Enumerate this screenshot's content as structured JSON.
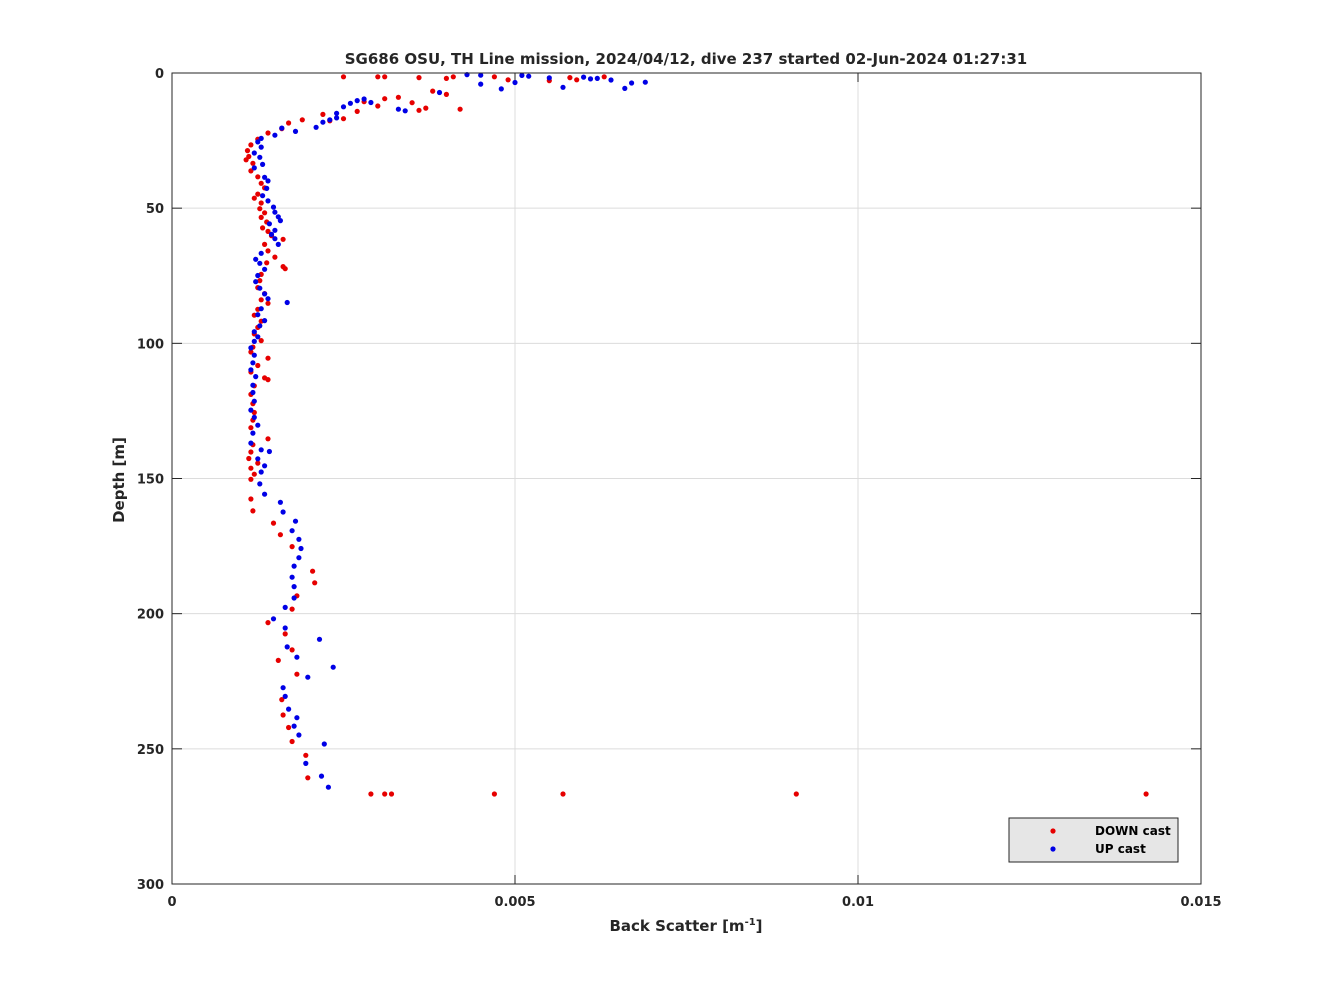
{
  "chart_data": {
    "type": "scatter",
    "title": "SG686 OSU, TH Line mission, 2024/04/12, dive 237 started 02-Jun-2024 01:27:31",
    "xlabel_main": "Back Scatter [m",
    "xlabel_sup": "-1",
    "xlabel_tail": "]",
    "ylabel": "Depth [m]",
    "xlim": [
      0,
      0.015
    ],
    "ylim": [
      0,
      300
    ],
    "y_reversed": true,
    "grid": true,
    "legend_placement": "bottom-right",
    "xticks": [
      {
        "value": 0,
        "label": "0"
      },
      {
        "value": 0.005,
        "label": "0.005"
      },
      {
        "value": 0.01,
        "label": "0.01"
      },
      {
        "value": 0.015,
        "label": "0.015"
      }
    ],
    "yticks": [
      {
        "value": 0,
        "label": "0"
      },
      {
        "value": 50,
        "label": "50"
      },
      {
        "value": 100,
        "label": "100"
      },
      {
        "value": 150,
        "label": "150"
      },
      {
        "value": 200,
        "label": "200"
      },
      {
        "value": 250,
        "label": "250"
      },
      {
        "value": 300,
        "label": "300"
      }
    ],
    "series": [
      {
        "name": "DOWN cast",
        "color": "#e60000",
        "points": [
          [
            0.0025,
            1.4
          ],
          [
            0.003,
            1.4
          ],
          [
            0.0031,
            1.4
          ],
          [
            0.0036,
            1.7
          ],
          [
            0.004,
            2.0
          ],
          [
            0.0041,
            1.4
          ],
          [
            0.0047,
            1.4
          ],
          [
            0.0049,
            2.5
          ],
          [
            0.0055,
            2.8
          ],
          [
            0.0058,
            1.7
          ],
          [
            0.0059,
            2.5
          ],
          [
            0.0063,
            1.4
          ],
          [
            0.0038,
            6.7
          ],
          [
            0.004,
            7.9
          ],
          [
            0.0037,
            13.0
          ],
          [
            0.0036,
            13.8
          ],
          [
            0.0042,
            13.4
          ],
          [
            0.0035,
            11.0
          ],
          [
            0.0033,
            9.0
          ],
          [
            0.0031,
            9.5
          ],
          [
            0.003,
            12.2
          ],
          [
            0.0028,
            10.6
          ],
          [
            0.0027,
            14.2
          ],
          [
            0.0025,
            16.9
          ],
          [
            0.0023,
            17.7
          ],
          [
            0.0022,
            15.3
          ],
          [
            0.0019,
            17.3
          ],
          [
            0.0017,
            18.5
          ],
          [
            0.0016,
            20.6
          ],
          [
            0.0014,
            22.2
          ],
          [
            0.00125,
            24.5
          ],
          [
            0.00115,
            26.6
          ],
          [
            0.0011,
            28.7
          ],
          [
            0.00112,
            30.9
          ],
          [
            0.00108,
            32.1
          ],
          [
            0.00118,
            33.4
          ],
          [
            0.00115,
            36.2
          ],
          [
            0.00125,
            38.4
          ],
          [
            0.0013,
            40.8
          ],
          [
            0.00135,
            42.5
          ],
          [
            0.00125,
            44.8
          ],
          [
            0.0012,
            46.3
          ],
          [
            0.0013,
            48.1
          ],
          [
            0.00128,
            50.2
          ],
          [
            0.00135,
            51.7
          ],
          [
            0.0013,
            53.4
          ],
          [
            0.00138,
            55.1
          ],
          [
            0.00132,
            57.3
          ],
          [
            0.0014,
            58.6
          ],
          [
            0.00145,
            60.2
          ],
          [
            0.00162,
            61.5
          ],
          [
            0.00135,
            63.4
          ],
          [
            0.0014,
            65.8
          ],
          [
            0.0015,
            68.1
          ],
          [
            0.00138,
            70.2
          ],
          [
            0.00162,
            71.6
          ],
          [
            0.00165,
            72.4
          ],
          [
            0.0013,
            74.5
          ],
          [
            0.00128,
            76.8
          ],
          [
            0.00125,
            79.4
          ],
          [
            0.00135,
            81.6
          ],
          [
            0.0013,
            83.9
          ],
          [
            0.0014,
            85.2
          ],
          [
            0.00125,
            87.4
          ],
          [
            0.0012,
            89.6
          ],
          [
            0.0013,
            91.8
          ],
          [
            0.00125,
            94.1
          ],
          [
            0.0012,
            96.5
          ],
          [
            0.0013,
            99.0
          ],
          [
            0.00118,
            101.4
          ],
          [
            0.00115,
            103.2
          ],
          [
            0.0014,
            105.5
          ],
          [
            0.00125,
            108.2
          ],
          [
            0.00115,
            110.6
          ],
          [
            0.0014,
            113.4
          ],
          [
            0.00135,
            112.8
          ],
          [
            0.0012,
            115.7
          ],
          [
            0.00115,
            118.9
          ],
          [
            0.00118,
            122.3
          ],
          [
            0.0012,
            125.6
          ],
          [
            0.00118,
            128.4
          ],
          [
            0.00115,
            131.2
          ],
          [
            0.0014,
            135.3
          ],
          [
            0.00118,
            137.5
          ],
          [
            0.00115,
            140.2
          ],
          [
            0.00112,
            142.6
          ],
          [
            0.00125,
            144.3
          ],
          [
            0.00115,
            146.2
          ],
          [
            0.0012,
            148.4
          ],
          [
            0.00115,
            150.3
          ],
          [
            0.00115,
            157.6
          ],
          [
            0.00118,
            162.0
          ],
          [
            0.00148,
            166.5
          ],
          [
            0.00158,
            170.8
          ],
          [
            0.00175,
            175.2
          ],
          [
            0.00205,
            184.3
          ],
          [
            0.00208,
            188.6
          ],
          [
            0.00182,
            193.4
          ],
          [
            0.00175,
            198.3
          ],
          [
            0.0014,
            203.3
          ],
          [
            0.00165,
            207.5
          ],
          [
            0.00175,
            213.4
          ],
          [
            0.00155,
            217.3
          ],
          [
            0.00182,
            222.4
          ],
          [
            0.0016,
            231.8
          ],
          [
            0.00162,
            237.5
          ],
          [
            0.0017,
            242.1
          ],
          [
            0.00175,
            247.3
          ],
          [
            0.00195,
            252.4
          ],
          [
            0.00198,
            260.7
          ],
          [
            0.0029,
            266.7
          ],
          [
            0.0031,
            266.7
          ],
          [
            0.0032,
            266.7
          ],
          [
            0.0047,
            266.7
          ],
          [
            0.0057,
            266.7
          ],
          [
            0.0091,
            266.7
          ],
          [
            0.0142,
            266.7
          ]
        ]
      },
      {
        "name": "UP cast",
        "color": "#0000e6",
        "points": [
          [
            0.0043,
            0.6
          ],
          [
            0.0045,
            0.8
          ],
          [
            0.0051,
            0.9
          ],
          [
            0.0052,
            1.2
          ],
          [
            0.006,
            1.5
          ],
          [
            0.0061,
            2.2
          ],
          [
            0.0062,
            2.0
          ],
          [
            0.0064,
            2.6
          ],
          [
            0.0067,
            3.7
          ],
          [
            0.0069,
            3.4
          ],
          [
            0.0066,
            5.7
          ],
          [
            0.0057,
            5.3
          ],
          [
            0.0055,
            1.8
          ],
          [
            0.005,
            3.5
          ],
          [
            0.0048,
            5.9
          ],
          [
            0.0045,
            4.1
          ],
          [
            0.0039,
            7.2
          ],
          [
            0.0034,
            14.0
          ],
          [
            0.0033,
            13.4
          ],
          [
            0.0028,
            9.6
          ],
          [
            0.0027,
            10.2
          ],
          [
            0.0029,
            10.9
          ],
          [
            0.0026,
            11.2
          ],
          [
            0.0025,
            12.5
          ],
          [
            0.0024,
            14.9
          ],
          [
            0.0024,
            16.6
          ],
          [
            0.0023,
            17.3
          ],
          [
            0.0022,
            18.2
          ],
          [
            0.0021,
            20.1
          ],
          [
            0.0018,
            21.6
          ],
          [
            0.0016,
            20.4
          ],
          [
            0.0015,
            23.0
          ],
          [
            0.0013,
            24.2
          ],
          [
            0.00125,
            25.5
          ],
          [
            0.0013,
            27.4
          ],
          [
            0.0012,
            29.6
          ],
          [
            0.00128,
            31.2
          ],
          [
            0.00132,
            33.8
          ],
          [
            0.0012,
            35.1
          ],
          [
            0.00135,
            38.6
          ],
          [
            0.0014,
            39.9
          ],
          [
            0.00138,
            42.7
          ],
          [
            0.00132,
            45.4
          ],
          [
            0.0014,
            47.3
          ],
          [
            0.00148,
            49.6
          ],
          [
            0.0015,
            51.5
          ],
          [
            0.00155,
            53.2
          ],
          [
            0.00142,
            55.8
          ],
          [
            0.00158,
            54.6
          ],
          [
            0.0015,
            58.2
          ],
          [
            0.00145,
            59.7
          ],
          [
            0.0015,
            61.3
          ],
          [
            0.00155,
            63.4
          ],
          [
            0.0013,
            66.7
          ],
          [
            0.00122,
            68.9
          ],
          [
            0.00128,
            70.4
          ],
          [
            0.00135,
            72.6
          ],
          [
            0.00125,
            74.9
          ],
          [
            0.00122,
            77.2
          ],
          [
            0.00128,
            79.6
          ],
          [
            0.00135,
            81.7
          ],
          [
            0.0014,
            83.5
          ],
          [
            0.00168,
            84.9
          ],
          [
            0.0013,
            87.2
          ],
          [
            0.00125,
            89.4
          ],
          [
            0.00135,
            91.6
          ],
          [
            0.00128,
            93.5
          ],
          [
            0.0012,
            95.7
          ],
          [
            0.00125,
            97.6
          ],
          [
            0.0012,
            99.3
          ],
          [
            0.00115,
            101.7
          ],
          [
            0.0012,
            104.4
          ],
          [
            0.00118,
            107.2
          ],
          [
            0.00115,
            109.8
          ],
          [
            0.00122,
            112.3
          ],
          [
            0.00118,
            115.5
          ],
          [
            0.00118,
            118.2
          ],
          [
            0.0012,
            121.4
          ],
          [
            0.00115,
            124.7
          ],
          [
            0.0012,
            127.4
          ],
          [
            0.00125,
            130.3
          ],
          [
            0.00118,
            133.2
          ],
          [
            0.00115,
            136.9
          ],
          [
            0.0013,
            139.4
          ],
          [
            0.00142,
            140.0
          ],
          [
            0.00125,
            142.7
          ],
          [
            0.00135,
            145.3
          ],
          [
            0.0013,
            147.6
          ],
          [
            0.00128,
            152.0
          ],
          [
            0.00135,
            155.8
          ],
          [
            0.00158,
            158.8
          ],
          [
            0.00162,
            162.4
          ],
          [
            0.0018,
            165.8
          ],
          [
            0.00175,
            169.3
          ],
          [
            0.00185,
            172.5
          ],
          [
            0.00188,
            175.9
          ],
          [
            0.00185,
            179.3
          ],
          [
            0.00178,
            182.4
          ],
          [
            0.00175,
            186.5
          ],
          [
            0.00178,
            190.0
          ],
          [
            0.00178,
            194.2
          ],
          [
            0.00165,
            197.7
          ],
          [
            0.00148,
            201.9
          ],
          [
            0.00165,
            205.3
          ],
          [
            0.00215,
            209.5
          ],
          [
            0.00168,
            212.3
          ],
          [
            0.00182,
            216.1
          ],
          [
            0.00235,
            219.8
          ],
          [
            0.00198,
            223.5
          ],
          [
            0.00162,
            227.4
          ],
          [
            0.00165,
            230.6
          ],
          [
            0.0017,
            235.3
          ],
          [
            0.00182,
            238.5
          ],
          [
            0.00178,
            241.6
          ],
          [
            0.00185,
            244.9
          ],
          [
            0.00222,
            248.2
          ],
          [
            0.00195,
            255.4
          ],
          [
            0.00218,
            260.1
          ],
          [
            0.00228,
            264.2
          ]
        ]
      }
    ]
  }
}
